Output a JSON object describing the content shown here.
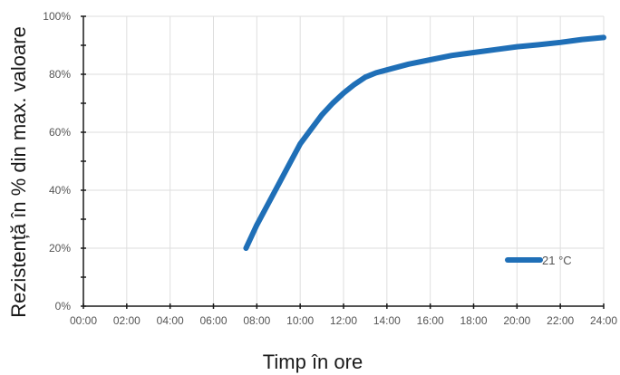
{
  "chart_data": {
    "type": "line",
    "title": "",
    "xlabel": "Timp în ore",
    "ylabel": "Rezistență în % din max. valoare",
    "x_tick_labels": [
      "00:00",
      "02:00",
      "04:00",
      "06:00",
      "08:00",
      "10:00",
      "12:00",
      "14:00",
      "16:00",
      "18:00",
      "20:00",
      "22:00",
      "24:00"
    ],
    "y_tick_labels": [
      "0%",
      "20%",
      "40%",
      "60%",
      "80%",
      "100%"
    ],
    "xlim": [
      0,
      24
    ],
    "ylim": [
      0,
      100
    ],
    "grid": true,
    "legend_position": "bottom-right",
    "series": [
      {
        "name": "21 °C",
        "color": "#1f6fb7",
        "x": [
          7.5,
          8.0,
          8.5,
          9.0,
          9.5,
          10.0,
          10.5,
          11.0,
          11.5,
          12.0,
          12.5,
          13.0,
          13.5,
          14.0,
          15.0,
          16.0,
          17.0,
          18.0,
          19.0,
          20.0,
          21.0,
          22.0,
          23.0,
          24.0
        ],
        "y": [
          20,
          28,
          35,
          42,
          49,
          56,
          61,
          66,
          70,
          73.5,
          76.5,
          79,
          80.5,
          81.5,
          83.5,
          85,
          86.5,
          87.5,
          88.5,
          89.5,
          90.2,
          91,
          92,
          92.7
        ]
      }
    ]
  }
}
